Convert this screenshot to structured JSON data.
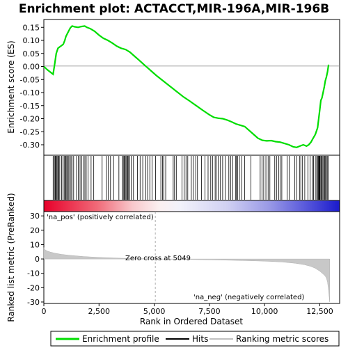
{
  "chart_data": {
    "type": "line",
    "title": "Enrichment plot: ACTACCT,MIR-196A,MIR-196B",
    "x_label": "Rank in Ordered Dataset",
    "es_panel": {
      "ylabel": "Enrichment score (ES)",
      "ylim": [
        -0.34,
        0.18
      ],
      "yticks": [
        0.15,
        0.1,
        0.05,
        0.0,
        -0.05,
        -0.1,
        -0.15,
        -0.2,
        -0.25,
        -0.3
      ],
      "ytick_labels": [
        "0.15",
        "0.10",
        "0.05",
        "0.00",
        "-0.05",
        "-0.10",
        "-0.15",
        "-0.20",
        "-0.25",
        "-0.30"
      ],
      "series": [
        {
          "name": "Enrichment profile",
          "color": "#00dd00",
          "x": [
            0,
            150,
            300,
            420,
            500,
            560,
            640,
            720,
            800,
            880,
            950,
            1000,
            1060,
            1120,
            1200,
            1280,
            1400,
            1550,
            1700,
            1850,
            1950,
            2100,
            2300,
            2500,
            2700,
            2900,
            3100,
            3300,
            3500,
            3700,
            3900,
            4100,
            4300,
            4500,
            4700,
            4900,
            5100,
            5400,
            5700,
            6000,
            6300,
            6600,
            6900,
            7200,
            7500,
            7700,
            7900,
            8100,
            8300,
            8500,
            8700,
            8900,
            9100,
            9300,
            9500,
            9700,
            9900,
            10100,
            10300,
            10500,
            10700,
            10900,
            11100,
            11300,
            11450,
            11600,
            11750,
            11900,
            12000,
            12100,
            12200,
            12300,
            12400,
            12450,
            12500,
            12550,
            12600,
            12650,
            12700,
            12750,
            12800,
            12850,
            12900
          ],
          "y": [
            0.0,
            -0.012,
            -0.022,
            -0.03,
            0.015,
            0.05,
            0.07,
            0.075,
            0.08,
            0.085,
            0.1,
            0.115,
            0.125,
            0.135,
            0.148,
            0.155,
            0.152,
            0.15,
            0.153,
            0.155,
            0.15,
            0.145,
            0.135,
            0.12,
            0.108,
            0.1,
            0.09,
            0.078,
            0.07,
            0.065,
            0.055,
            0.04,
            0.025,
            0.01,
            -0.005,
            -0.02,
            -0.035,
            -0.055,
            -0.075,
            -0.095,
            -0.115,
            -0.132,
            -0.15,
            -0.168,
            -0.185,
            -0.195,
            -0.198,
            -0.2,
            -0.205,
            -0.212,
            -0.22,
            -0.225,
            -0.23,
            -0.245,
            -0.26,
            -0.275,
            -0.283,
            -0.285,
            -0.284,
            -0.288,
            -0.29,
            -0.295,
            -0.3,
            -0.308,
            -0.31,
            -0.305,
            -0.3,
            -0.305,
            -0.3,
            -0.29,
            -0.275,
            -0.26,
            -0.235,
            -0.2,
            -0.165,
            -0.13,
            -0.12,
            -0.1,
            -0.08,
            -0.055,
            -0.04,
            -0.02,
            0.007
          ]
        }
      ]
    },
    "hits_panel": {
      "legend_label": "Hits",
      "hit_ranks": [
        420,
        470,
        510,
        540,
        560,
        600,
        640,
        680,
        720,
        800,
        860,
        920,
        960,
        1000,
        1040,
        1080,
        1130,
        1180,
        1230,
        1280,
        1350,
        1480,
        1560,
        1640,
        1720,
        1800,
        1860,
        1920,
        2000,
        2140,
        2260,
        2640,
        2840,
        2920,
        3020,
        3160,
        3400,
        3560,
        3600,
        3640,
        3680,
        3720,
        3760,
        3800,
        3840,
        3880,
        3960,
        4060,
        4240,
        4360,
        4480,
        4620,
        4700,
        4800,
        4900,
        5060,
        5300,
        5380,
        5440,
        5520,
        5860,
        5920,
        6000,
        6260,
        6360,
        6440,
        6520,
        6680,
        6760,
        6880,
        6960,
        7140,
        7300,
        7440,
        7560,
        7640,
        7760,
        7800,
        7900,
        8000,
        8100,
        8220,
        8380,
        8460,
        8560,
        8680,
        8720,
        8780,
        8860,
        8960,
        9100,
        9380,
        9800,
        9880,
        9960,
        10060,
        10160,
        10240,
        10460,
        10540,
        10640,
        10700,
        10780,
        11020,
        11120,
        11360,
        11460,
        11580,
        11640,
        11720,
        11820,
        11960,
        12060,
        12160,
        12220,
        12300,
        12360,
        12400,
        12440,
        12460,
        12480,
        12500,
        12520,
        12560,
        12600,
        12640,
        12680,
        12720,
        12760,
        12800,
        12840,
        12880
      ]
    },
    "metric_panel": {
      "ylabel": "Ranked list metric (PreRanked)",
      "legend_label": "Ranking metric scores",
      "ylim": [
        -31,
        33
      ],
      "yticks": [
        30,
        20,
        10,
        0,
        -10,
        -20,
        -30
      ],
      "ytick_labels": [
        "30",
        "20",
        "10",
        "0",
        "-10",
        "-20",
        "-30"
      ],
      "x": [
        0,
        50,
        150,
        300,
        500,
        800,
        1200,
        1800,
        2500,
        3500,
        4500,
        5049,
        6000,
        7000,
        8000,
        9000,
        10000,
        10800,
        11400,
        11800,
        12100,
        12300,
        12500,
        12650,
        12750,
        12800,
        12850,
        12900,
        12950
      ],
      "y": [
        8.0,
        6.5,
        5.5,
        4.8,
        4.0,
        3.2,
        2.5,
        1.7,
        1.1,
        0.5,
        0.15,
        0.0,
        -0.2,
        -0.45,
        -0.75,
        -1.1,
        -1.5,
        -2.1,
        -3.0,
        -4.0,
        -5.2,
        -6.5,
        -8.5,
        -10.5,
        -12.0,
        -13.5,
        -16.0,
        -22.0,
        -30.0
      ],
      "zero_cross_label": "Zero cross at 5049",
      "zero_cross_x": 5049,
      "pos_label": "'na_pos' (positively correlated)",
      "neg_label": "'na_neg' (negatively correlated)"
    },
    "x_axis": {
      "xlim": [
        0,
        13400
      ],
      "xticks": [
        0,
        2500,
        5000,
        7500,
        10000,
        12500
      ],
      "xtick_labels": [
        "0",
        "2,500",
        "5,000",
        "7,500",
        "10,000",
        "12,500"
      ],
      "n_ranks": 12950
    },
    "legend": {
      "placement": "bottom",
      "entries": [
        "Enrichment profile",
        "Hits",
        "Ranking metric scores"
      ]
    }
  }
}
